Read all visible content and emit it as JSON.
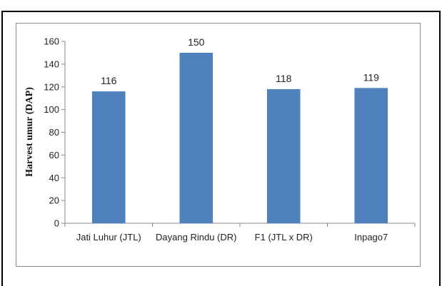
{
  "chart_data": {
    "type": "bar",
    "categories": [
      "Jati Luhur (JTL)",
      "Dayang Rindu (DR)",
      "F1 (JTL x DR)",
      "Inpago7"
    ],
    "values": [
      116,
      150,
      118,
      119
    ],
    "data_labels": [
      "116",
      "150",
      "118",
      "119"
    ],
    "title": "",
    "xlabel": "",
    "ylabel": "Harvest umur (DAP)",
    "ylim": [
      0,
      160
    ],
    "yticks": [
      0,
      20,
      40,
      60,
      80,
      100,
      120,
      140,
      160
    ],
    "grid": false,
    "legend": "none",
    "bar_color": "#4f81bd"
  }
}
